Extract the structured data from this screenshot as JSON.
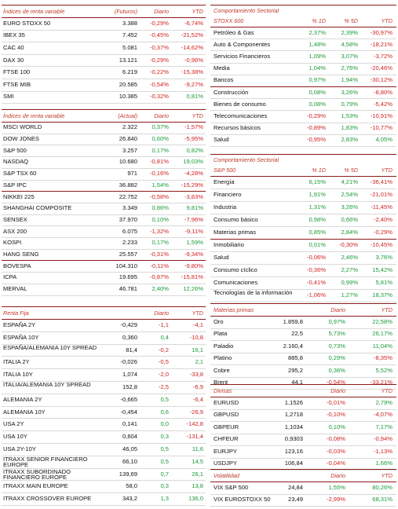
{
  "left": [
    {
      "header": [
        "Índices de renta variable",
        "(Futuros)",
        "Diario",
        "YTD"
      ],
      "rows": [
        [
          "EURO STOXX 50",
          "3.388",
          "-0,29%",
          "-6,74%"
        ],
        [
          "IBEX 35",
          "7.452",
          "-0,45%",
          "-21,52%"
        ],
        [
          "CAC 40",
          "5.081",
          "-0,37%",
          "-14,62%"
        ],
        [
          "DAX 30",
          "13.121",
          "-0,29%",
          "-0,96%"
        ],
        [
          "FTSE 100",
          "6.219",
          "-0,22%",
          "-15,38%"
        ],
        [
          "FTSE MIB",
          "20.585",
          "-0,54%",
          "-9,27%"
        ],
        [
          "SMI",
          "10.385",
          "-0,32%",
          "0,81%"
        ]
      ]
    },
    {
      "header": [
        "Índices de renta variable",
        "(Actual)",
        "Diario",
        "YTD"
      ],
      "rows": [
        [
          "MSCI WORLD",
          "2.322",
          "0,37%",
          "-1,57%"
        ],
        [
          "DOW JONES",
          "26.840",
          "0,60%",
          "-5,95%"
        ],
        [
          "S&P 500",
          "3.257",
          "0,17%",
          "0,82%"
        ],
        [
          "NASDAQ",
          "10.680",
          "-0,81%",
          "19,03%"
        ],
        [
          "S&P TSX 60",
          "971",
          "-0,16%",
          "-4,28%"
        ],
        [
          "S&P IPC",
          "36.882",
          "1,54%",
          "-15,29%"
        ],
        [
          "NIKKEI 225",
          "22.752",
          "-0,58%",
          "-3,83%"
        ],
        [
          "SHANGHAI COMPOSITE",
          "3.349",
          "0,86%",
          "9,81%"
        ],
        [
          "SENSEX",
          "37.970",
          "0,10%",
          "-7,96%"
        ],
        [
          "ASX 200",
          "6.075",
          "-1,32%",
          "-9,11%"
        ],
        [
          "KOSPI",
          "2.233",
          "0,17%",
          "1,59%"
        ],
        [
          "HANG SENG",
          "25.557",
          "-0,31%",
          "-9,34%"
        ],
        [
          "BOVESPA",
          "104.310",
          "-0,11%",
          "-9,80%"
        ],
        [
          "ICPA",
          "19.695",
          "-0,87%",
          "-15,81%"
        ],
        [
          "MERVAL",
          "46.781",
          "2,40%",
          "12,26%"
        ]
      ]
    },
    {
      "header": [
        "Renta Fija",
        "Diario",
        "YTD"
      ],
      "rows": [
        [
          "ESPAÑA 2Y",
          "-0,429",
          "-1,1",
          "-4,1"
        ],
        [
          "ESPAÑA 10Y",
          "0,360",
          "0,4",
          "-10,8"
        ],
        [
          "ESPAÑA/ALEMANIA 10Y SPREAD",
          "81,4",
          "-0,2",
          "16,1"
        ],
        [
          "ITALIA 2Y",
          "-0,026",
          "-0,5",
          "2,1"
        ],
        [
          "ITALIA 10Y",
          "1,074",
          "-2,0",
          "-33,8"
        ],
        [
          "ITALIA/ALEMANIA 10Y SPREAD",
          "152,8",
          "-2,5",
          "-6,9"
        ],
        [
          "ALEMANIA 2Y",
          "-0,665",
          "0,5",
          "-6,4"
        ],
        [
          "ALEMANIA 10Y",
          "-0,454",
          "0,6",
          "-26,9"
        ],
        [
          "USA 2Y",
          "0,141",
          "0,0",
          "-142,8"
        ],
        [
          "USA 10Y",
          "0,604",
          "0,3",
          "-131,4"
        ],
        [
          "USA 2Y-10Y",
          "46,05",
          "0,5",
          "11,6"
        ],
        [
          "ITRAXX SENIOR FINANCIERO EUROPE",
          "66,10",
          "0,5",
          "14,5"
        ],
        [
          "ITRAXX SUBORDINADO FINANCIERO EUROPE",
          "139,69",
          "0,7",
          "26,1"
        ],
        [
          "ITRAXX MAIN EUROPE",
          "58,0",
          "0,3",
          "13,8"
        ],
        [
          "ITRAXX CROSSOVER EUROPE",
          "343,2",
          "1,3",
          "136,0"
        ]
      ]
    }
  ],
  "right": [
    {
      "title": "Comportamiento Sectorial",
      "header": [
        "STOXX 600",
        "% 1D",
        "% 5D",
        "YTD"
      ],
      "rows": [
        [
          "Petróleo & Gas",
          "2,37%",
          "2,39%",
          "-30,97%"
        ],
        [
          "Auto & Componentes",
          "1,48%",
          "4,58%",
          "-18,21%"
        ],
        [
          "Servicios Financieros",
          "1,09%",
          "3,07%",
          "-3,72%"
        ],
        [
          "Media",
          "1,04%",
          "2,76%",
          "-20,46%"
        ],
        [
          "Bancos",
          "0,97%",
          "1,94%",
          "-30,12%"
        ],
        [
          "Construcción",
          "0,08%",
          "3,26%",
          "-8,80%"
        ],
        [
          "Bienes de consumo",
          "0,08%",
          "0,79%",
          "-5,42%"
        ],
        [
          "Telecomunicaciones",
          "-0,29%",
          "1,53%",
          "-10,91%"
        ],
        [
          "Recursos básicos",
          "-0,89%",
          "1,83%",
          "-10,77%"
        ],
        [
          "Salud",
          "-0,95%",
          "2,83%",
          "4,05%"
        ]
      ]
    },
    {
      "title": "Comportamiento Sectorial",
      "header": [
        "S&P 500",
        "% 1D",
        "% 5D",
        "YTD"
      ],
      "rows": [
        [
          "Energía",
          "6,15%",
          "4,21%",
          "-36,41%"
        ],
        [
          "Financiero",
          "1,91%",
          "2,54%",
          "-21,01%"
        ],
        [
          "Industria",
          "1,31%",
          "3,26%",
          "-11,45%"
        ],
        [
          "Consumo básico",
          "0,98%",
          "0,66%",
          "-2,40%"
        ],
        [
          "Materias primas",
          "0,85%",
          "2,84%",
          "-0,29%"
        ],
        [
          "Inmobiliario",
          "0,01%",
          "-0,30%",
          "-10,45%"
        ],
        [
          "Salud",
          "-0,06%",
          "2,46%",
          "3,76%"
        ],
        [
          "Consumo cíclico",
          "-0,36%",
          "2,27%",
          "15,42%"
        ],
        [
          "Comunicaciones",
          "-0,41%",
          "0,99%",
          "5,81%"
        ],
        [
          "Tecnologías de la información",
          "-1,06%",
          "1,27%",
          "18,37%"
        ]
      ]
    },
    {
      "header": [
        "Materias primas",
        "Diario",
        "YTD"
      ],
      "rows": [
        [
          "Oro",
          "1.859,8",
          "0,97%",
          "22,58%"
        ],
        [
          "Plata",
          "22,5",
          "5,73%",
          "26,17%"
        ],
        [
          "Paladio",
          "2.160,4",
          "0,73%",
          "11,04%"
        ],
        [
          "Platino",
          "885,8",
          "0,29%",
          "-8,35%"
        ],
        [
          "Cobre",
          "295,2",
          "0,36%",
          "5,52%"
        ],
        [
          "Brent",
          "44,1",
          "-0,54%",
          "-33,21%"
        ]
      ]
    },
    {
      "header": [
        "Divisas",
        "Diario",
        "YTD"
      ],
      "rows": [
        [
          "EURUSD",
          "1,1526",
          "-0,01%",
          "2,79%"
        ],
        [
          "GBPUSD",
          "1,2718",
          "-0,10%",
          "-4,07%"
        ],
        [
          "GBPEUR",
          "1,1034",
          "0,10%",
          "7,17%"
        ],
        [
          "CHFEUR",
          "0,9303",
          "-0,08%",
          "-0,94%"
        ],
        [
          "EURJPY",
          "123,16",
          "-0,03%",
          "-1,13%"
        ],
        [
          "USDJPY",
          "106,84",
          "-0,04%",
          "1,66%"
        ]
      ]
    },
    {
      "header": [
        "Volatilidad",
        "Diario",
        "YTD"
      ],
      "rows": [
        [
          "VIX S&P 500",
          "24,84",
          "1,55%",
          "80,26%"
        ],
        [
          "VIX EUROSTOXX 50",
          "23,49",
          "-2,99%",
          "68,31%"
        ]
      ]
    }
  ]
}
